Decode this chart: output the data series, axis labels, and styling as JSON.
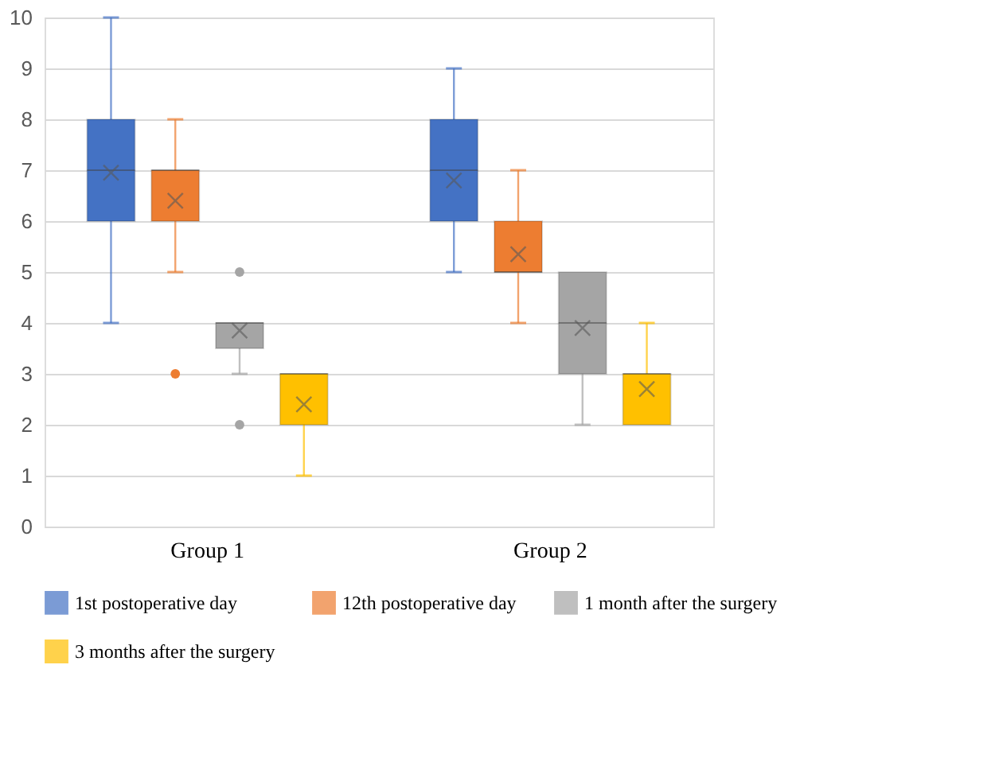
{
  "chart_data": {
    "type": "box",
    "categories": [
      "Group 1",
      "Group 2"
    ],
    "ylim": [
      0,
      10
    ],
    "yticks": [
      0,
      1,
      2,
      3,
      4,
      5,
      6,
      7,
      8,
      9,
      10
    ],
    "grid": "y",
    "legend": "bottom",
    "series": [
      {
        "name": "1st postoperative day",
        "color": "#4472c4",
        "boxes": [
          {
            "low": 4,
            "q1": 6,
            "median": 7,
            "q3": 8,
            "high": 10,
            "mean": 6.95
          },
          {
            "low": 5,
            "q1": 6,
            "median": 7,
            "q3": 8,
            "high": 9,
            "mean": 6.8
          }
        ]
      },
      {
        "name": "12th postoperative day",
        "color": "#ed7d31",
        "boxes": [
          {
            "low": 5,
            "q1": 6,
            "median": 7,
            "q3": 7,
            "high": 8,
            "mean": 6.4,
            "outliers": [
              3
            ]
          },
          {
            "low": 4,
            "q1": 5,
            "median": 5,
            "q3": 6,
            "high": 7,
            "mean": 5.35
          }
        ]
      },
      {
        "name": "1 month after the surgery",
        "color": "#a5a5a5",
        "boxes": [
          {
            "low": 3,
            "q1": 3.5,
            "median": 4,
            "q3": 4,
            "high": 4,
            "mean": 3.85,
            "outliers": [
              5,
              2
            ]
          },
          {
            "low": 2,
            "q1": 3,
            "median": 4,
            "q3": 5,
            "high": 5,
            "mean": 3.9
          }
        ]
      },
      {
        "name": "3 months after the surgery",
        "color": "#ffc000",
        "boxes": [
          {
            "low": 1,
            "q1": 2,
            "median": 3,
            "q3": 3,
            "high": 3,
            "mean": 2.4
          },
          {
            "low": 2,
            "q1": 2,
            "median": 3,
            "q3": 3,
            "high": 4,
            "mean": 2.7
          }
        ]
      }
    ]
  }
}
